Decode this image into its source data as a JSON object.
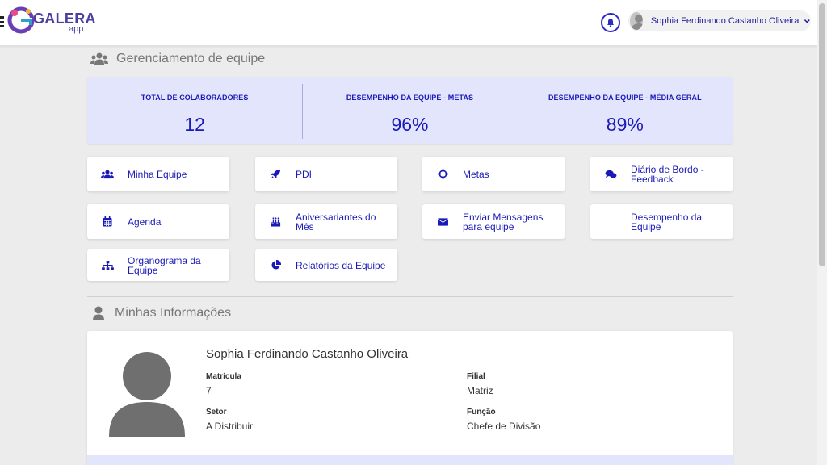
{
  "brand": {
    "name": "GALERA",
    "suffix": "app"
  },
  "header": {
    "user_name": "Sophia Ferdinando Castanho Oliveira"
  },
  "sections": {
    "team": "Gerenciamento de equipe",
    "info": "Minhas Informações"
  },
  "stats": [
    {
      "label": "TOTAL DE COLABORADORES",
      "value": "12"
    },
    {
      "label": "DESEMPENHO DA EQUIPE - METAS",
      "value": "96%"
    },
    {
      "label": "DESEMPENHO DA EQUIPE - MÉDIA GERAL",
      "value": "89%"
    }
  ],
  "cards": [
    {
      "label": "Minha Equipe",
      "icon": "users-icon"
    },
    {
      "label": "PDI",
      "icon": "rocket-icon"
    },
    {
      "label": "Metas",
      "icon": "crosshairs-icon"
    },
    {
      "label": "Diário de Bordo - Feedback",
      "icon": "comments-icon"
    },
    {
      "label": "Agenda",
      "icon": "calendar-icon"
    },
    {
      "label": "Aniversariantes do Mês",
      "icon": "birthday-cake-icon"
    },
    {
      "label": "Enviar Mensagens para equipe",
      "icon": "envelope-icon"
    },
    {
      "label": "Desempenho da Equipe",
      "icon": ""
    },
    {
      "label": "Organograma da Equipe",
      "icon": "sitemap-icon"
    },
    {
      "label": "Relatórios da Equipe",
      "icon": "pie-chart-icon"
    }
  ],
  "profile": {
    "name": "Sophia Ferdinando Castanho Oliveira",
    "matricula_label": "Matrícula",
    "matricula": "7",
    "filial_label": "Filial",
    "filial": "Matriz",
    "setor_label": "Setor",
    "setor": "A Distribuir",
    "funcao_label": "Função",
    "funcao": "Chefe de Divisão"
  },
  "colors": {
    "accent": "#1a1ab8",
    "stats_bg": "#e3e5fc",
    "page_bg": "#ececec"
  }
}
